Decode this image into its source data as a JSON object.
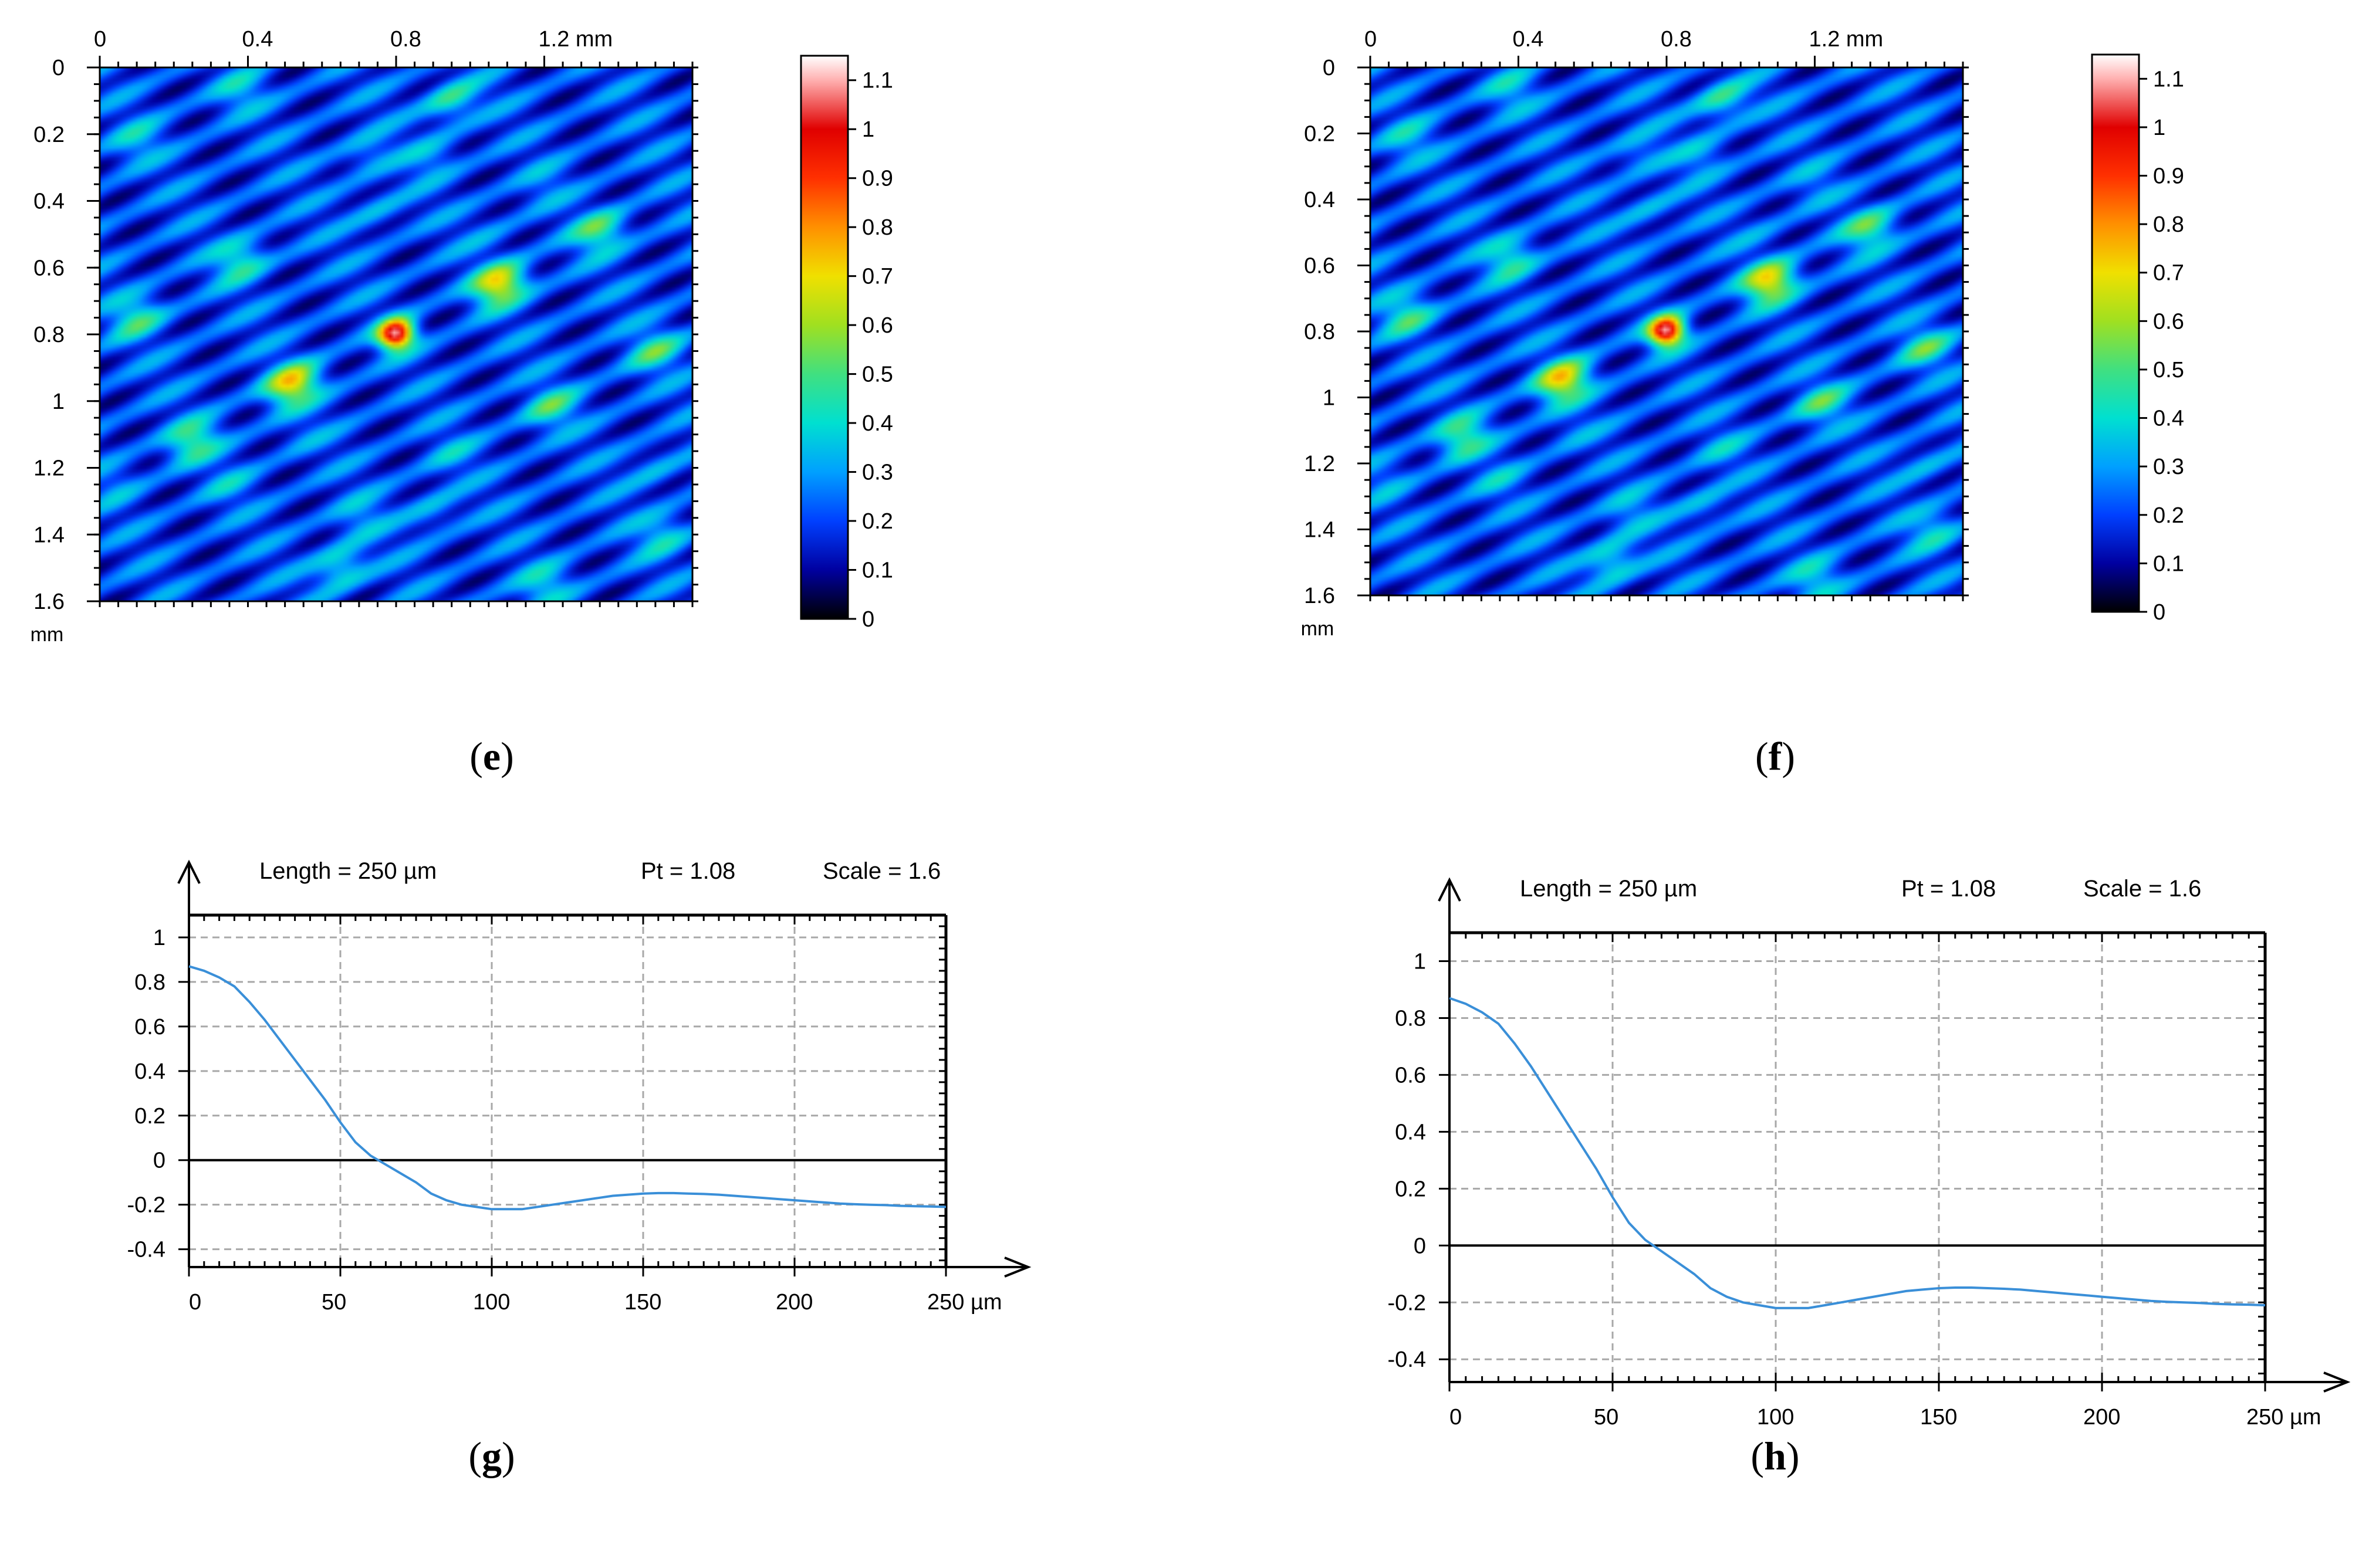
{
  "panels": [
    {
      "label": "(e)",
      "letter": "e"
    },
    {
      "label": "(f)",
      "letter": "f"
    },
    {
      "label": "(g)",
      "letter": "g"
    },
    {
      "label": "(h)",
      "letter": "h"
    }
  ],
  "colormap": {
    "stops": [
      {
        "v": 0.0,
        "color": "#000000"
      },
      {
        "v": 0.1,
        "color": "#0000a0"
      },
      {
        "v": 0.2,
        "color": "#0040ff"
      },
      {
        "v": 0.3,
        "color": "#00a0ff"
      },
      {
        "v": 0.4,
        "color": "#00e0d0"
      },
      {
        "v": 0.5,
        "color": "#40e080"
      },
      {
        "v": 0.6,
        "color": "#a0e020"
      },
      {
        "v": 0.7,
        "color": "#f0e000"
      },
      {
        "v": 0.8,
        "color": "#ff9000"
      },
      {
        "v": 0.9,
        "color": "#ff3000"
      },
      {
        "v": 1.0,
        "color": "#e00000"
      },
      {
        "v": 1.1,
        "color": "#ffb0b0"
      },
      {
        "v": 1.15,
        "color": "#ffffff"
      }
    ]
  },
  "chart_data": [
    {
      "id": "e",
      "type": "heatmap",
      "title": "",
      "xlabel": "mm",
      "ylabel": "mm",
      "x_tick_labels": [
        "0",
        "0.4",
        "0.8",
        "1.2 mm"
      ],
      "x_tick_values": [
        0,
        0.4,
        0.8,
        1.2
      ],
      "y_tick_labels": [
        "0",
        "0.2",
        "0.4",
        "0.6",
        "0.8",
        "1",
        "1.2",
        "1.4",
        "1.6"
      ],
      "y_tick_values": [
        0,
        0.2,
        0.4,
        0.6,
        0.8,
        1.0,
        1.2,
        1.4,
        1.6
      ],
      "xlim": [
        0,
        1.6
      ],
      "ylim": [
        0,
        1.6
      ],
      "y_unit_label": "mm",
      "colorbar": {
        "min": 0,
        "max": 1.15,
        "tick_labels": [
          "0",
          "0.1",
          "0.2",
          "0.3",
          "0.4",
          "0.5",
          "0.6",
          "0.7",
          "0.8",
          "0.9",
          "1",
          "1.1"
        ],
        "tick_values": [
          0,
          0.1,
          0.2,
          0.3,
          0.4,
          0.5,
          0.6,
          0.7,
          0.8,
          0.9,
          1.0,
          1.1
        ]
      },
      "peaks": [
        {
          "x": 0.8,
          "y": 0.8,
          "v": 1.1
        },
        {
          "x": 1.08,
          "y": 0.65,
          "v": 0.72
        },
        {
          "x": 0.52,
          "y": 0.95,
          "v": 0.72
        },
        {
          "x": 1.35,
          "y": 0.49,
          "v": 0.5
        },
        {
          "x": 0.25,
          "y": 1.12,
          "v": 0.5
        },
        {
          "x": 0.38,
          "y": 0.58,
          "v": 0.45
        },
        {
          "x": 1.22,
          "y": 1.02,
          "v": 0.45
        },
        {
          "x": 0.65,
          "y": 1.5,
          "v": 0.45
        },
        {
          "x": 0.95,
          "y": 0.1,
          "v": 0.45
        },
        {
          "x": 0.1,
          "y": 0.75,
          "v": 0.45
        },
        {
          "x": 1.5,
          "y": 0.85,
          "v": 0.45
        },
        {
          "x": 0.1,
          "y": 0.22,
          "v": 0.35
        },
        {
          "x": 0.38,
          "y": 0.07,
          "v": 0.35
        },
        {
          "x": 0.72,
          "y": 0.26,
          "v": 0.32
        },
        {
          "x": 0.9,
          "y": 0.27,
          "v": 0.32
        },
        {
          "x": 1.52,
          "y": 1.4,
          "v": 0.38
        },
        {
          "x": 1.2,
          "y": 1.55,
          "v": 0.38
        },
        {
          "x": 0.9,
          "y": 1.33,
          "v": 0.32
        },
        {
          "x": 0.7,
          "y": 1.35,
          "v": 0.32
        },
        {
          "x": 0.75,
          "y": 0.43,
          "v": 0.3
        },
        {
          "x": 0.35,
          "y": 1.25,
          "v": 0.3
        },
        {
          "x": 0.95,
          "y": 1.16,
          "v": 0.3
        },
        {
          "x": 1.2,
          "y": 0.35,
          "v": 0.28
        },
        {
          "x": 1.5,
          "y": 1.2,
          "v": 0.3
        },
        {
          "x": 0.05,
          "y": 1.25,
          "v": 0.28
        },
        {
          "x": 1.05,
          "y": 0.5,
          "v": 0.25
        },
        {
          "x": 0.55,
          "y": 1.1,
          "v": 0.25
        }
      ],
      "background_level": 0.2,
      "ridge_direction": "diagonal from bottom-left to top-right"
    },
    {
      "id": "f",
      "type": "heatmap",
      "title": "",
      "xlabel": "mm",
      "ylabel": "mm",
      "x_tick_labels": [
        "0",
        "0.4",
        "0.8",
        "1.2 mm"
      ],
      "x_tick_values": [
        0,
        0.4,
        0.8,
        1.2
      ],
      "y_tick_labels": [
        "0",
        "0.2",
        "0.4",
        "0.6",
        "0.8",
        "1",
        "1.2",
        "1.4",
        "1.6"
      ],
      "y_tick_values": [
        0,
        0.2,
        0.4,
        0.6,
        0.8,
        1.0,
        1.2,
        1.4,
        1.6
      ],
      "xlim": [
        0,
        1.6
      ],
      "ylim": [
        0,
        1.6
      ],
      "y_unit_label": "mm",
      "colorbar": {
        "min": 0,
        "max": 1.15,
        "tick_labels": [
          "0",
          "0.1",
          "0.2",
          "0.3",
          "0.4",
          "0.5",
          "0.6",
          "0.7",
          "0.8",
          "0.9",
          "1",
          "1.1"
        ],
        "tick_values": [
          0,
          0.1,
          0.2,
          0.3,
          0.4,
          0.5,
          0.6,
          0.7,
          0.8,
          0.9,
          1.0,
          1.1
        ]
      },
      "peaks": [
        {
          "x": 0.8,
          "y": 0.8,
          "v": 1.1
        },
        {
          "x": 1.08,
          "y": 0.65,
          "v": 0.72
        },
        {
          "x": 0.52,
          "y": 0.95,
          "v": 0.72
        },
        {
          "x": 1.35,
          "y": 0.49,
          "v": 0.5
        },
        {
          "x": 0.25,
          "y": 1.12,
          "v": 0.5
        },
        {
          "x": 0.38,
          "y": 0.58,
          "v": 0.45
        },
        {
          "x": 1.22,
          "y": 1.02,
          "v": 0.45
        },
        {
          "x": 0.65,
          "y": 1.5,
          "v": 0.45
        },
        {
          "x": 0.95,
          "y": 0.1,
          "v": 0.45
        },
        {
          "x": 0.1,
          "y": 0.75,
          "v": 0.45
        },
        {
          "x": 1.5,
          "y": 0.85,
          "v": 0.45
        },
        {
          "x": 0.1,
          "y": 0.22,
          "v": 0.35
        },
        {
          "x": 0.38,
          "y": 0.07,
          "v": 0.35
        },
        {
          "x": 0.72,
          "y": 0.26,
          "v": 0.32
        },
        {
          "x": 0.9,
          "y": 0.27,
          "v": 0.32
        },
        {
          "x": 1.52,
          "y": 1.4,
          "v": 0.38
        },
        {
          "x": 1.2,
          "y": 1.55,
          "v": 0.38
        },
        {
          "x": 0.9,
          "y": 1.33,
          "v": 0.32
        },
        {
          "x": 0.7,
          "y": 1.35,
          "v": 0.32
        },
        {
          "x": 0.75,
          "y": 0.43,
          "v": 0.3
        },
        {
          "x": 0.35,
          "y": 1.25,
          "v": 0.3
        },
        {
          "x": 0.95,
          "y": 1.16,
          "v": 0.3
        },
        {
          "x": 1.2,
          "y": 0.35,
          "v": 0.28
        },
        {
          "x": 1.5,
          "y": 1.2,
          "v": 0.3
        },
        {
          "x": 0.05,
          "y": 1.25,
          "v": 0.28
        },
        {
          "x": 1.05,
          "y": 0.5,
          "v": 0.25
        },
        {
          "x": 0.55,
          "y": 1.1,
          "v": 0.25
        }
      ],
      "background_level": 0.2,
      "ridge_direction": "diagonal from bottom-left to top-right"
    },
    {
      "id": "g",
      "type": "line",
      "title": "Length = 250 µm  Pt = 1.08     Scale = 1.6",
      "title_parts": [
        "Length = 250 µm",
        "Pt = 1.08",
        "Scale = 1.6"
      ],
      "xlabel": "µm",
      "ylabel": "",
      "xlim": [
        0,
        250
      ],
      "ylim": [
        -0.48,
        1.1
      ],
      "x_tick_labels": [
        "0",
        "50",
        "100",
        "150",
        "200",
        "250 µm"
      ],
      "x_tick_values": [
        0,
        50,
        100,
        150,
        200,
        250
      ],
      "y_tick_labels": [
        "1",
        "0.8",
        "0.6",
        "0.4",
        "0.2",
        "0",
        "-0.2",
        "-0.4"
      ],
      "y_tick_values": [
        1,
        0.8,
        0.6,
        0.4,
        0.2,
        0,
        -0.2,
        -0.4
      ],
      "grid": true,
      "line_color": "#3a8fd8",
      "x": [
        0,
        5,
        10,
        15,
        20,
        25,
        30,
        35,
        40,
        45,
        50,
        55,
        60,
        65,
        70,
        75,
        80,
        85,
        90,
        95,
        100,
        105,
        110,
        115,
        120,
        125,
        130,
        135,
        140,
        145,
        150,
        155,
        160,
        165,
        170,
        175,
        180,
        185,
        190,
        195,
        200,
        205,
        210,
        215,
        220,
        225,
        230,
        235,
        240,
        245,
        250
      ],
      "y": [
        0.87,
        0.85,
        0.82,
        0.78,
        0.71,
        0.63,
        0.54,
        0.45,
        0.36,
        0.27,
        0.17,
        0.08,
        0.02,
        -0.02,
        -0.06,
        -0.1,
        -0.15,
        -0.18,
        -0.2,
        -0.21,
        -0.22,
        -0.22,
        -0.22,
        -0.21,
        -0.2,
        -0.19,
        -0.18,
        -0.17,
        -0.16,
        -0.155,
        -0.15,
        -0.148,
        -0.148,
        -0.15,
        -0.152,
        -0.155,
        -0.16,
        -0.165,
        -0.17,
        -0.175,
        -0.18,
        -0.185,
        -0.19,
        -0.195,
        -0.198,
        -0.2,
        -0.202,
        -0.205,
        -0.207,
        -0.208,
        -0.21
      ]
    },
    {
      "id": "h",
      "type": "line",
      "title": "Length = 250 µm  Pt = 1.08     Scale = 1.6",
      "title_parts": [
        "Length = 250 µm",
        "Pt = 1.08",
        "Scale = 1.6"
      ],
      "xlabel": "µm",
      "ylabel": "",
      "xlim": [
        0,
        250
      ],
      "ylim": [
        -0.48,
        1.1
      ],
      "x_tick_labels": [
        "0",
        "50",
        "100",
        "150",
        "200",
        "250 µm"
      ],
      "x_tick_values": [
        0,
        50,
        100,
        150,
        200,
        250
      ],
      "y_tick_labels": [
        "1",
        "0.8",
        "0.6",
        "0.4",
        "0.2",
        "0",
        "-0.2",
        "-0.4"
      ],
      "y_tick_values": [
        1,
        0.8,
        0.6,
        0.4,
        0.2,
        0,
        -0.2,
        -0.4
      ],
      "grid": true,
      "line_color": "#3a8fd8",
      "x": [
        0,
        5,
        10,
        15,
        20,
        25,
        30,
        35,
        40,
        45,
        50,
        55,
        60,
        65,
        70,
        75,
        80,
        85,
        90,
        95,
        100,
        105,
        110,
        115,
        120,
        125,
        130,
        135,
        140,
        145,
        150,
        155,
        160,
        165,
        170,
        175,
        180,
        185,
        190,
        195,
        200,
        205,
        210,
        215,
        220,
        225,
        230,
        235,
        240,
        245,
        250
      ],
      "y": [
        0.87,
        0.85,
        0.82,
        0.78,
        0.71,
        0.63,
        0.54,
        0.45,
        0.36,
        0.27,
        0.17,
        0.08,
        0.02,
        -0.02,
        -0.06,
        -0.1,
        -0.15,
        -0.18,
        -0.2,
        -0.21,
        -0.22,
        -0.22,
        -0.22,
        -0.21,
        -0.2,
        -0.19,
        -0.18,
        -0.17,
        -0.16,
        -0.155,
        -0.15,
        -0.148,
        -0.148,
        -0.15,
        -0.152,
        -0.155,
        -0.16,
        -0.165,
        -0.17,
        -0.175,
        -0.18,
        -0.185,
        -0.19,
        -0.195,
        -0.198,
        -0.2,
        -0.202,
        -0.205,
        -0.207,
        -0.208,
        -0.21
      ]
    }
  ]
}
